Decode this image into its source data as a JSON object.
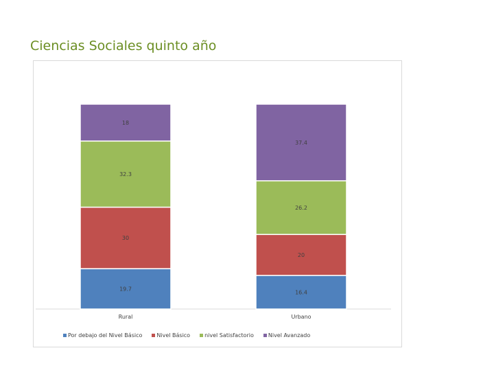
{
  "slide": {
    "title": "Ciencias Sociales quinto año"
  },
  "chart_data": {
    "type": "bar",
    "stacked": true,
    "categories": [
      "Rural",
      "Urbano"
    ],
    "series": [
      {
        "name": "Por debajo del Nivel Básico",
        "values": [
          19.7,
          16.4
        ],
        "color": "#4f81bd"
      },
      {
        "name": "Nivel Básico",
        "values": [
          30,
          20
        ],
        "color": "#c0504d"
      },
      {
        "name": "nivel Satisfactorio",
        "values": [
          32.3,
          26.2
        ],
        "color": "#9bbb59"
      },
      {
        "name": "Nivel Avanzado",
        "values": [
          18,
          37.4
        ],
        "color": "#8064a2"
      }
    ],
    "data_labels": [
      [
        "19.7",
        "30",
        "32.3",
        "18"
      ],
      [
        "16.4",
        "20",
        "26.2",
        "37.4"
      ]
    ],
    "ylim": [
      0,
      100
    ],
    "grid": false,
    "legend_position": "bottom"
  }
}
